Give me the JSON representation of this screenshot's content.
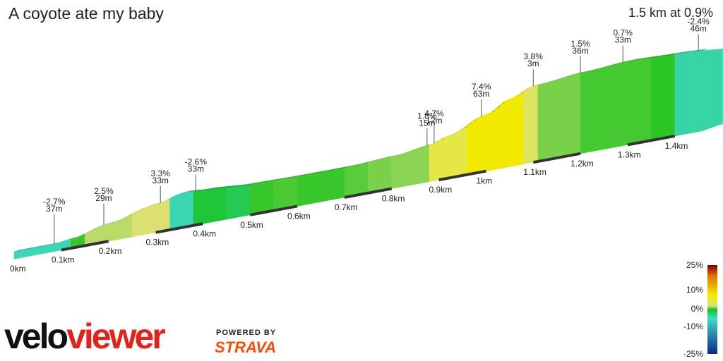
{
  "header": {
    "title": "A coyote ate my baby",
    "summary": "1.5 km at 0.9%"
  },
  "chart_data": {
    "type": "area",
    "title": "A coyote ate my baby",
    "subtitle": "1.5 km at 0.9%",
    "xunit": "km",
    "xlim": [
      0,
      1.5
    ],
    "distance_ticks": [
      "0km",
      "0.1km",
      "0.2km",
      "0.3km",
      "0.4km",
      "0.5km",
      "0.6km",
      "0.7km",
      "0.8km",
      "0.9km",
      "1km",
      "1.1km",
      "1.2km",
      "1.3km",
      "1.4km"
    ],
    "elevation_profile": {
      "x": [
        0,
        0.05,
        0.09,
        0.12,
        0.15,
        0.2,
        0.25,
        0.3,
        0.33,
        0.36,
        0.38,
        0.4,
        0.45,
        0.5,
        0.55,
        0.6,
        0.65,
        0.7,
        0.75,
        0.8,
        0.85,
        0.88,
        0.92,
        0.96,
        1.0,
        1.04,
        1.08,
        1.11,
        1.15,
        1.2,
        1.25,
        1.3,
        1.35,
        1.4,
        1.46
      ],
      "gradient_pct": [
        -2.7,
        -2.7,
        -2.7,
        0.5,
        2.5,
        2.5,
        3.3,
        3.3,
        -2.6,
        -2.6,
        -0.5,
        -0.5,
        -1.0,
        0.5,
        0.8,
        0.5,
        0.5,
        1.0,
        1.5,
        1.8,
        1.8,
        4.7,
        4.7,
        7.4,
        7.4,
        7.4,
        3.8,
        1.5,
        1.5,
        0.7,
        0.7,
        0.7,
        0.3,
        -2.4,
        -2.4
      ]
    },
    "segments": [
      {
        "gradient": "-2.7%",
        "length": "37m"
      },
      {
        "gradient": "2.5%",
        "length": "29m"
      },
      {
        "gradient": "3.3%",
        "length": "33m"
      },
      {
        "gradient": "-2.6%",
        "length": "33m"
      },
      {
        "gradient": "1.8%",
        "length": "15m"
      },
      {
        "gradient": "4.7%",
        "length": "12m"
      },
      {
        "gradient": "7.4%",
        "length": "63m"
      },
      {
        "gradient": "3.8%",
        "length": "3m"
      },
      {
        "gradient": "1.5%",
        "length": "36m"
      },
      {
        "gradient": "0.7%",
        "length": "33m"
      },
      {
        "gradient": "-2.4%",
        "length": "46m"
      }
    ],
    "segment_position_km": [
      0.085,
      0.19,
      0.31,
      0.385,
      0.875,
      0.89,
      0.99,
      1.1,
      1.2,
      1.29,
      1.45
    ],
    "color_scale": {
      "labels": [
        "25%",
        "10%",
        "0%",
        "-10%",
        "-25%"
      ],
      "values": [
        25,
        10,
        0,
        -10,
        -25
      ]
    },
    "colors": {
      "neg_far": "#0a2a8a",
      "neg": "#3fd9c8",
      "zero": "#18c21a",
      "mid": "#d9e07a",
      "pos": "#f2f000",
      "high": "#e07000",
      "max": "#7a0000"
    }
  },
  "branding": {
    "velo": "velo",
    "viewer": "viewer",
    "powered_by": "POWERED BY",
    "strava": "STRAVA"
  }
}
